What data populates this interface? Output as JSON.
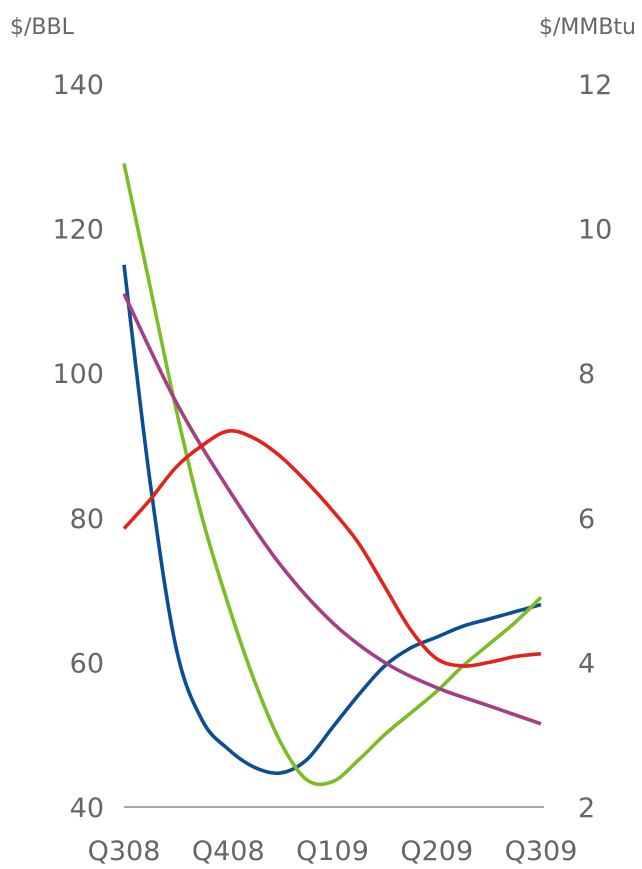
{
  "chart_data": {
    "type": "line",
    "title": "",
    "y_left_label": "$/BBL",
    "y_right_label": "$/MMBtu",
    "categories": [
      "Q308",
      "Q408",
      "Q109",
      "Q209",
      "Q309"
    ],
    "y_left_ticks": [
      "40",
      "60",
      "80",
      "100",
      "120",
      "140"
    ],
    "y_right_ticks": [
      "2",
      "4",
      "6",
      "8",
      "10",
      "12"
    ],
    "ylim_left": [
      40,
      140
    ],
    "ylim_right": [
      2,
      12
    ],
    "grid": false,
    "series": [
      {
        "axis": "left",
        "color": "#0a4f93",
        "x": [
          0,
          0.25,
          0.5,
          0.75,
          1,
          1.25,
          1.5,
          1.75,
          2,
          2.25,
          2.5,
          2.75,
          3,
          3.25,
          3.5,
          3.75,
          4
        ],
        "values": [
          115,
          85,
          62,
          52,
          48,
          45.5,
          44.7,
          46.5,
          51,
          55.5,
          59.5,
          62,
          63.5,
          65,
          66,
          67,
          68
        ]
      },
      {
        "axis": "left",
        "color": "#7bbd26",
        "x": [
          0,
          0.25,
          0.5,
          0.75,
          1,
          1.25,
          1.5,
          1.75,
          2,
          2.25,
          2.5,
          2.75,
          3,
          3.25,
          3.5,
          3.75,
          4
        ],
        "values": [
          129,
          112,
          95,
          80,
          68,
          57.5,
          49,
          43.8,
          43.5,
          46.5,
          50,
          53,
          56,
          59.5,
          62.5,
          65.5,
          69
        ]
      },
      {
        "axis": "left",
        "color": "#a53d87",
        "x": [
          0,
          0.5,
          1,
          1.5,
          2,
          2.5,
          3,
          3.5,
          4
        ],
        "values": [
          111,
          96,
          84,
          73.5,
          65.5,
          60,
          56.5,
          54,
          51.5
        ]
      },
      {
        "axis": "left",
        "color": "#e3231b",
        "x": [
          0,
          0.25,
          0.5,
          0.75,
          1,
          1.25,
          1.5,
          1.75,
          2,
          2.25,
          2.5,
          2.75,
          3,
          3.25,
          3.5,
          3.75,
          4
        ],
        "values": [
          78.5,
          82.5,
          87,
          90,
          92,
          91,
          88.5,
          85,
          81,
          76.5,
          70.5,
          64.5,
          60.5,
          59.5,
          60,
          60.8,
          61.2
        ]
      }
    ]
  }
}
